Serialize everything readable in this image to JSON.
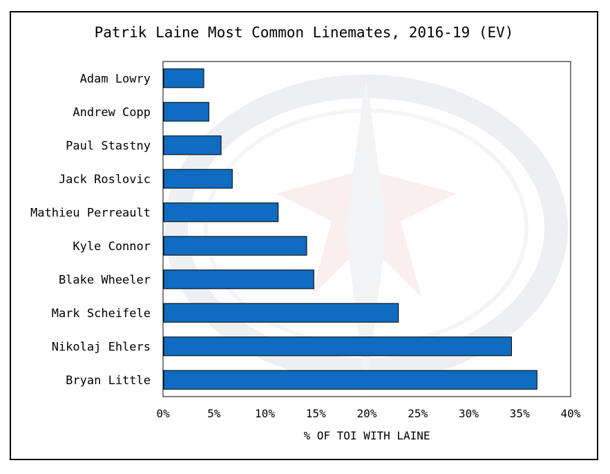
{
  "chart_data": {
    "type": "bar",
    "orientation": "horizontal",
    "title": "Patrik Laine Most Common Linemates, 2016-19 (EV)",
    "xlabel": "% OF TOI WITH LAINE",
    "ylabel": "",
    "xlim": [
      0,
      40
    ],
    "xticks": [
      "0%",
      "5%",
      "10%",
      "15%",
      "20%",
      "25%",
      "30%",
      "35%",
      "40%"
    ],
    "grid": false,
    "categories": [
      "Adam Lowry",
      "Andrew Copp",
      "Paul Stastny",
      "Jack Roslovic",
      "Mathieu Perreault",
      "Kyle Connor",
      "Blake Wheeler",
      "Mark Scheifele",
      "Nikolaj Ehlers",
      "Bryan Little"
    ],
    "values": [
      4.0,
      4.5,
      5.7,
      6.8,
      11.3,
      14.1,
      14.8,
      23.1,
      34.2,
      36.7
    ],
    "bar_color": "#0f6cc0",
    "background_watermark": "winnipeg-jets-logo"
  }
}
